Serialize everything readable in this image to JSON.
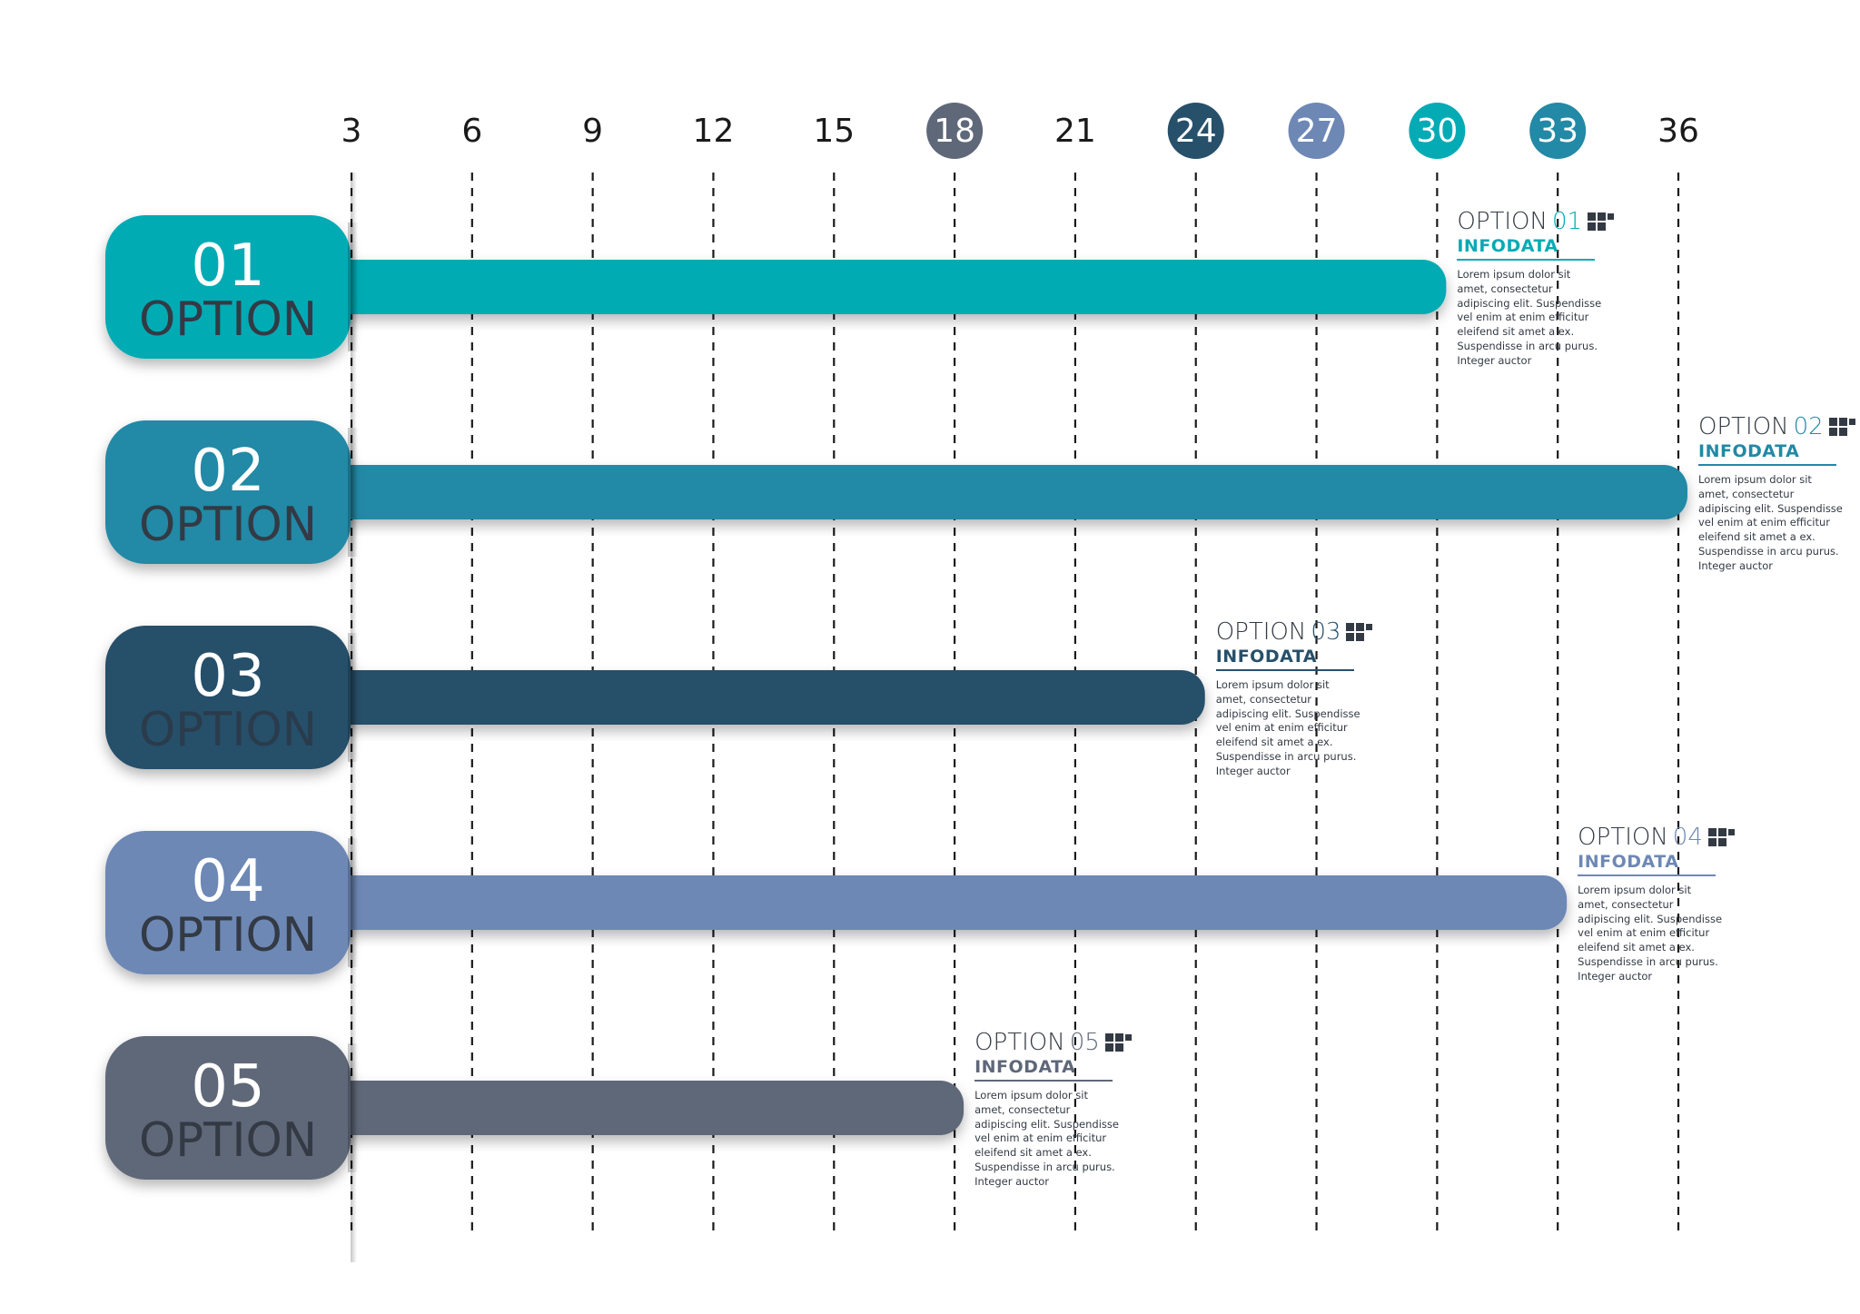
{
  "chart_data": {
    "type": "bar",
    "orientation": "horizontal",
    "xlim": [
      3,
      36
    ],
    "ticks": [
      3,
      6,
      9,
      12,
      15,
      18,
      21,
      24,
      27,
      30,
      33,
      36
    ],
    "highlighted_ticks": [
      {
        "tick": 18,
        "color": "#5f6879"
      },
      {
        "tick": 24,
        "color": "#27506a"
      },
      {
        "tick": 27,
        "color": "#6e88b5"
      },
      {
        "tick": 30,
        "color": "#05abb4"
      },
      {
        "tick": 33,
        "color": "#2289a6"
      }
    ],
    "grid": "dashed-vertical",
    "bars": [
      {
        "number": "01",
        "label": "OPTION",
        "value": 30,
        "color": "#05abb4",
        "label_color": "#333a44"
      },
      {
        "number": "02",
        "label": "OPTION",
        "value": 36,
        "color": "#2289a6",
        "label_color": "#333a44"
      },
      {
        "number": "03",
        "label": "OPTION",
        "value": 24,
        "color": "#27506a",
        "label_color": "#2a3c4c"
      },
      {
        "number": "04",
        "label": "OPTION",
        "value": 33,
        "color": "#6e88b5",
        "label_color": "#333a44"
      },
      {
        "number": "05",
        "label": "OPTION",
        "value": 18,
        "color": "#5f6879",
        "label_color": "#333a44"
      }
    ]
  },
  "annotations": [
    {
      "title": "OPTION",
      "number": "01",
      "subtitle": "INFODATA",
      "body": "Lorem ipsum dolor sit amet, consectetur adipiscing elit. Suspendisse vel enim at enim efficitur eleifend sit amet a ex. Suspendisse in arcu purus. Integer auctor",
      "color": "#05abb4"
    },
    {
      "title": "OPTION",
      "number": "02",
      "subtitle": "INFODATA",
      "body": "Lorem ipsum dolor sit amet, consectetur adipiscing elit. Suspendisse vel enim at enim efficitur eleifend sit amet a ex. Suspendisse in arcu purus. Integer auctor",
      "color": "#2289a6"
    },
    {
      "title": "OPTION",
      "number": "03",
      "subtitle": "INFODATA",
      "body": "Lorem ipsum dolor sit amet, consectetur adipiscing elit. Suspendisse vel enim at enim efficitur eleifend sit amet a ex. Suspendisse in arcu purus. Integer auctor",
      "color": "#27506a"
    },
    {
      "title": "OPTION",
      "number": "04",
      "subtitle": "INFODATA",
      "body": "Lorem ipsum dolor sit amet, consectetur adipiscing elit. Suspendisse vel enim at enim efficitur eleifend sit amet a ex. Suspendisse in arcu purus. Integer auctor",
      "color": "#6e88b5"
    },
    {
      "title": "OPTION",
      "number": "05",
      "subtitle": "INFODATA",
      "body": "Lorem ipsum dolor sit amet, consectetur adipiscing elit. Suspendisse vel enim at enim efficitur eleifend sit amet a ex. Suspendisse in arcu purus. Integer auctor",
      "color": "#5f6879"
    }
  ]
}
